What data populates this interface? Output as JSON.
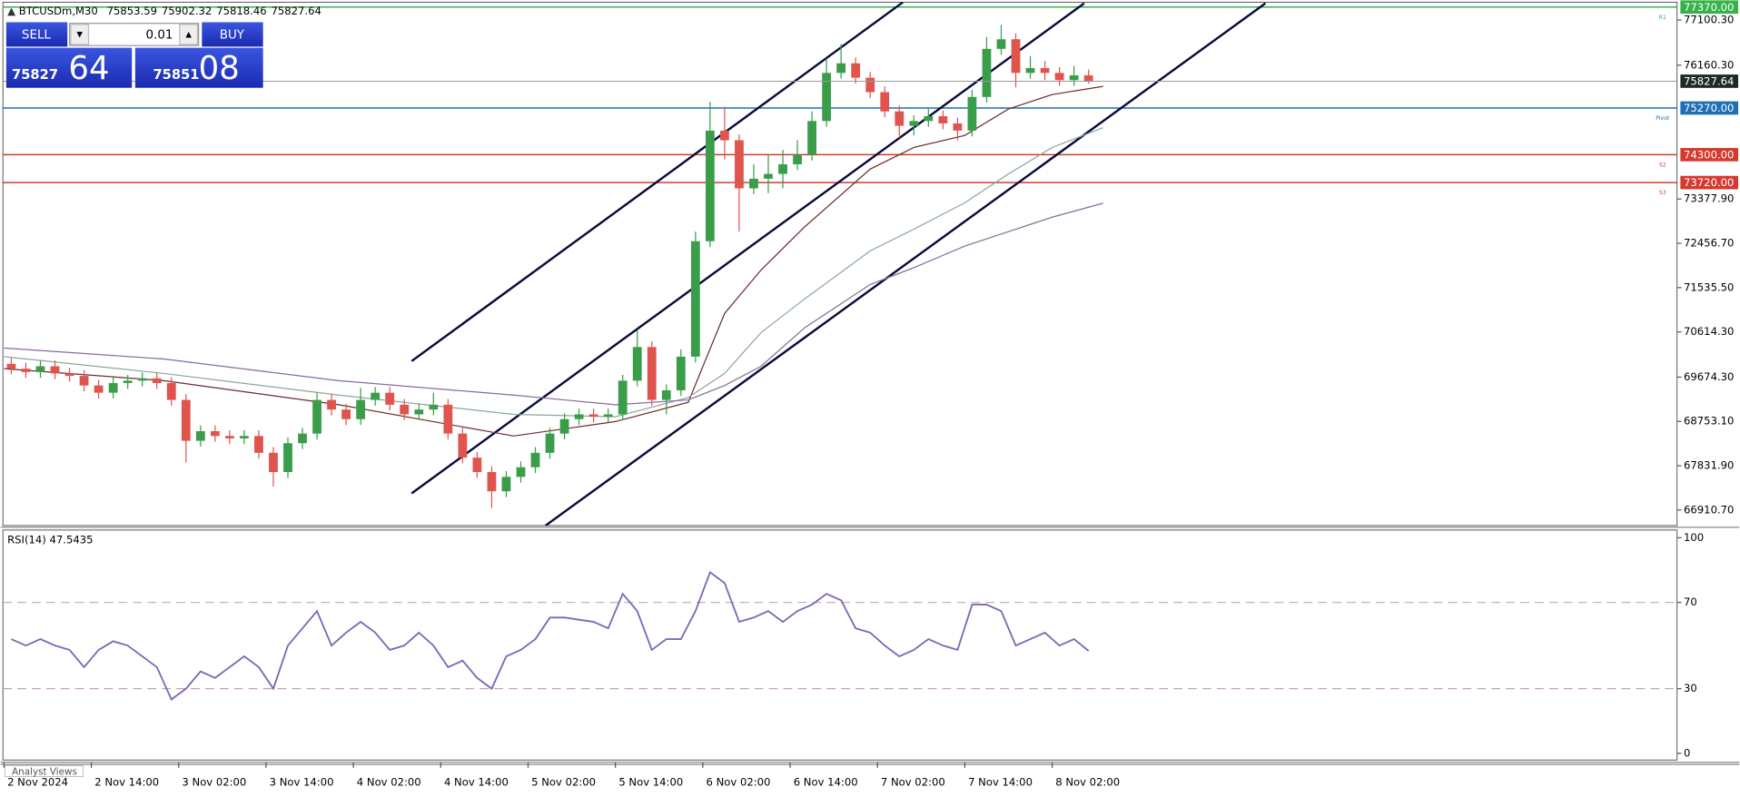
{
  "chart_data": [
    {
      "type": "candlestick",
      "symbol": "BTCUSDm,M30",
      "quote": [
        75853.59,
        75902.32,
        75818.46,
        75827.64
      ],
      "trade_panel": {
        "sell": "SELL",
        "buy": "BUY",
        "lot": "0.01",
        "bid_main": "75827",
        "bid_pips": "64",
        "ask_main": "75851",
        "ask_pips": "08"
      },
      "x": [
        3,
        5,
        7,
        9,
        11,
        13,
        15,
        17,
        19,
        21,
        23,
        25,
        27,
        29,
        31,
        33,
        35,
        37,
        39,
        41,
        43,
        45,
        47,
        49,
        51,
        53,
        55,
        57,
        59,
        61,
        63,
        65,
        67,
        69,
        71,
        73,
        75,
        77,
        79,
        81,
        83,
        85,
        87,
        89,
        91,
        93,
        95,
        97,
        99,
        101,
        103,
        105,
        107,
        109,
        111,
        113,
        115,
        117,
        119,
        121,
        123,
        125,
        127,
        129,
        131,
        133,
        135,
        137,
        139,
        141,
        143,
        145,
        147,
        149,
        151
      ],
      "open": [
        69950,
        69850,
        69780,
        69900,
        69750,
        69700,
        69500,
        69350,
        69550,
        69600,
        69650,
        69550,
        69200,
        68350,
        68550,
        68450,
        68400,
        68450,
        68100,
        67700,
        68300,
        68500,
        69200,
        69000,
        68800,
        69200,
        69350,
        69100,
        68900,
        69000,
        69100,
        68500,
        68000,
        67700,
        67300,
        67600,
        67800,
        68100,
        68500,
        68800,
        68900,
        68850,
        68900,
        69600,
        70300,
        69200,
        69400,
        70100,
        72500,
        74800,
        74600,
        73600,
        73800,
        73900,
        74100,
        74300,
        75000,
        76000,
        76200,
        75900,
        75600,
        75200,
        74900,
        75000,
        75100,
        74950,
        74800,
        75500,
        76500,
        76700,
        76000,
        76100,
        76000,
        75850,
        75950
      ],
      "high": [
        70070,
        69970,
        70020,
        70020,
        69870,
        69820,
        69620,
        69670,
        69720,
        69770,
        69770,
        69670,
        69320,
        68670,
        68670,
        68570,
        68570,
        68570,
        68220,
        68420,
        68620,
        69350,
        69320,
        69120,
        69450,
        69470,
        69470,
        69220,
        69120,
        69350,
        69220,
        68620,
        68120,
        67820,
        67720,
        67920,
        68220,
        68620,
        68920,
        69020,
        69020,
        69020,
        69720,
        70650,
        70420,
        69520,
        70250,
        72700,
        75400,
        75300,
        74720,
        74100,
        74300,
        74400,
        74600,
        75200,
        76300,
        76600,
        76320,
        76020,
        75720,
        75320,
        75120,
        75250,
        75220,
        75070,
        75650,
        76750,
        77000,
        76820,
        76350,
        76250,
        76120,
        76150,
        76070
      ],
      "low": [
        69730,
        69660,
        69660,
        69630,
        69580,
        69380,
        69230,
        69230,
        69430,
        69480,
        69430,
        69080,
        67900,
        68230,
        68330,
        68280,
        68280,
        67980,
        67400,
        67580,
        68180,
        68380,
        68880,
        68680,
        68680,
        69080,
        68980,
        68780,
        68780,
        68880,
        68380,
        67880,
        67580,
        66950,
        67180,
        67480,
        67680,
        67980,
        68380,
        68680,
        68730,
        68730,
        68780,
        69480,
        69080,
        68900,
        69280,
        69980,
        72380,
        74200,
        72700,
        73480,
        73500,
        73600,
        73980,
        74180,
        74880,
        75880,
        75780,
        75480,
        75080,
        74650,
        74700,
        74880,
        74830,
        74600,
        74680,
        75380,
        76380,
        75700,
        75880,
        75850,
        75730,
        75730,
        75780
      ],
      "close": [
        69850,
        69780,
        69900,
        69750,
        69700,
        69500,
        69350,
        69550,
        69600,
        69650,
        69550,
        69200,
        68350,
        68550,
        68450,
        68400,
        68450,
        68100,
        67700,
        68300,
        68500,
        69200,
        69000,
        68800,
        69200,
        69350,
        69100,
        68900,
        69000,
        69100,
        68500,
        68000,
        67700,
        67300,
        67600,
        67800,
        68100,
        68500,
        68800,
        68900,
        68850,
        68900,
        69600,
        70300,
        69200,
        69400,
        70100,
        72500,
        74800,
        74600,
        73600,
        73800,
        73900,
        74100,
        74300,
        75000,
        76000,
        76200,
        75900,
        75600,
        75200,
        74900,
        75000,
        75100,
        74950,
        74800,
        75500,
        76500,
        76700,
        76000,
        76100,
        76000,
        75850,
        75950,
        75827.64
      ],
      "up_color": "#3a9d4a",
      "down_color": "#e0544e",
      "moving_averages": {
        "x": [
          2,
          24,
          48,
          72,
          86,
          96,
          101,
          106,
          112,
          121,
          127,
          134,
          140,
          146,
          153
        ],
        "series": [
          {
            "color": "#6b2b2b",
            "values": [
              69850,
              69600,
              69100,
              68450,
              68750,
              69150,
              71000,
              71900,
              72800,
              74000,
              74450,
              74700,
              75250,
              75550,
              75720
            ]
          },
          {
            "color": "#8aa89a",
            "values": [
              70100,
              69750,
              69300,
              68900,
              68850,
              69250,
              69750,
              70600,
              71300,
              72300,
              72750,
              73300,
              73900,
              74450,
              74860
            ]
          },
          {
            "color": "#8a6a9a",
            "values": [
              70280,
              70050,
              69600,
              69300,
              69100,
              69200,
              69500,
              69900,
              70700,
              71600,
              71950,
              72400,
              72700,
              73000,
              73290
            ]
          }
        ]
      },
      "trendlines": [
        {
          "x": [
            58,
            125.5
          ],
          "y": [
            70007,
            77470
          ]
        },
        {
          "x": [
            58,
            150.4
          ],
          "y": [
            67257,
            77447
          ]
        },
        {
          "x": [
            76.4,
            175.3
          ],
          "y": [
            66587,
            77447
          ]
        }
      ],
      "trendline_color": "#0b0b3b",
      "levels": [
        {
          "name": "R1",
          "value": 77370,
          "label": "77370.00",
          "color": "#36b24a"
        },
        {
          "name": "Pivot",
          "value": 75270,
          "label": "75270.00",
          "color": "#1f6fb5"
        },
        {
          "name": "S2",
          "value": 74300,
          "label": "74300.00",
          "color": "#d43a2f"
        },
        {
          "name": "S3",
          "value": 73720,
          "label": "73720.00",
          "color": "#d43a2f"
        }
      ],
      "xlim": [
        1.85,
        231.85
      ],
      "ylim": [
        66587,
        77470
      ],
      "yticks": [
        {
          "value": 66910.7,
          "label": "66910.70"
        },
        {
          "value": 67831.9,
          "label": "67831.90"
        },
        {
          "value": 68753.1,
          "label": "68753.10"
        },
        {
          "value": 69674.3,
          "label": "69674.30"
        },
        {
          "value": 70614.3,
          "label": "70614.30"
        },
        {
          "value": 71535.5,
          "label": "71535.50"
        },
        {
          "value": 72456.7,
          "label": "72456.70"
        },
        {
          "value": 73377.9,
          "label": "73377.90"
        },
        {
          "value": 76160.3,
          "label": "76160.30"
        },
        {
          "value": 77100.3,
          "label": "77100.30"
        }
      ],
      "xticks": [
        {
          "value": 2,
          "label": "2 Nov 2024"
        },
        {
          "value": 14,
          "label": "2 Nov 14:00"
        },
        {
          "value": 26,
          "label": "3 Nov 02:00"
        },
        {
          "value": 38,
          "label": "3 Nov 14:00"
        },
        {
          "value": 50,
          "label": "4 Nov 02:00"
        },
        {
          "value": 62,
          "label": "4 Nov 14:00"
        },
        {
          "value": 74,
          "label": "5 Nov 02:00"
        },
        {
          "value": 86,
          "label": "5 Nov 14:00"
        },
        {
          "value": 98,
          "label": "6 Nov 02:00"
        },
        {
          "value": 110,
          "label": "6 Nov 14:00"
        },
        {
          "value": 122,
          "label": "7 Nov 02:00"
        },
        {
          "value": 134,
          "label": "7 Nov 14:00"
        },
        {
          "value": 146,
          "label": "8 Nov 02:00"
        }
      ],
      "footer_tab": "Analyst Views"
    },
    {
      "type": "line",
      "title": "RSI(14) 47.5435",
      "x": [
        3,
        5,
        7,
        9,
        11,
        13,
        15,
        17,
        19,
        21,
        23,
        25,
        27,
        29,
        31,
        33,
        35,
        37,
        39,
        41,
        43,
        45,
        47,
        49,
        51,
        53,
        55,
        57,
        59,
        61,
        63,
        65,
        67,
        69,
        71,
        73,
        75,
        77,
        79,
        81,
        83,
        85,
        87,
        89,
        91,
        93,
        95,
        97,
        99,
        101,
        103,
        105,
        107,
        109,
        111,
        113,
        115,
        117,
        119,
        121,
        123,
        125,
        127,
        129,
        131,
        133,
        135,
        137,
        139,
        141,
        143,
        145,
        147,
        149,
        151
      ],
      "values": [
        53,
        50,
        53,
        50,
        48,
        40,
        48,
        52,
        50,
        45,
        40,
        25,
        30,
        38,
        35,
        40,
        45,
        40,
        30,
        50,
        58,
        66,
        50,
        56,
        61,
        56,
        48,
        50,
        56,
        50,
        40,
        43,
        35,
        30,
        45,
        48,
        53,
        63,
        63,
        62,
        61,
        58,
        74,
        66,
        48,
        53,
        53,
        66,
        84,
        79,
        61,
        63,
        66,
        61,
        66,
        69,
        74,
        71,
        58,
        56,
        50,
        45,
        48,
        53,
        50,
        48,
        69,
        69,
        66,
        50,
        53,
        56,
        50,
        53,
        47.5435
      ],
      "color": "#7b68b5",
      "ylim": [
        -3.1,
        103.6
      ],
      "yticks": [
        0,
        30,
        70,
        100
      ],
      "levels": [
        30,
        70
      ]
    }
  ]
}
